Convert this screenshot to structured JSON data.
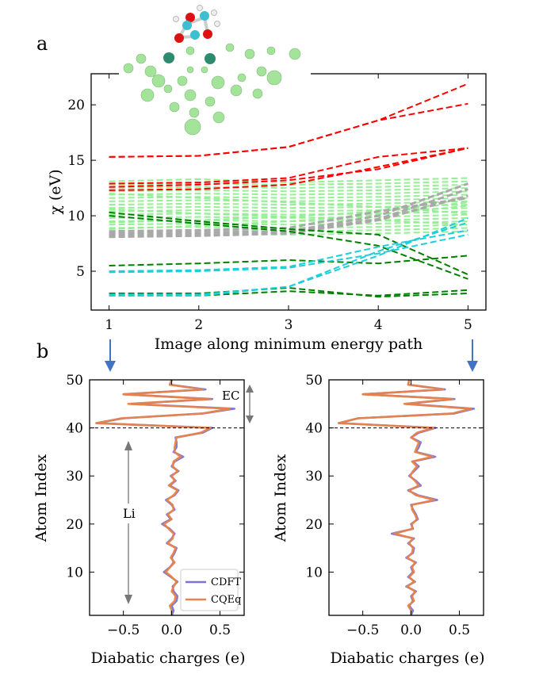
{
  "chart_data": [
    {
      "panel_label": "a",
      "type": "line",
      "xlabel": "Image along minimum energy path",
      "ylabel": "χ (eV)",
      "x": [
        1,
        2,
        3,
        4,
        5
      ],
      "xlim": [
        0.8,
        5.2
      ],
      "ylim": [
        1.5,
        22.8
      ],
      "xticks": [
        "1",
        "2",
        "3",
        "4",
        "5"
      ],
      "yticks": [
        "5",
        "10",
        "15",
        "20"
      ],
      "colors": {
        "O": "#ff0000",
        "C": "#008000",
        "H": "#1ccfdb",
        "Li_surface": "#a9a9a9",
        "Li": "#90ee90"
      },
      "series": [
        {
          "group": "O",
          "values": [
            15.3,
            15.4,
            16.2,
            18.6,
            20.1
          ]
        },
        {
          "group": "O",
          "values": [
            15.3,
            15.4,
            16.2,
            18.6,
            21.9
          ]
        },
        {
          "group": "O",
          "values": [
            12.9,
            13.0,
            13.4,
            15.3,
            16.1
          ]
        },
        {
          "group": "O",
          "values": [
            12.6,
            12.8,
            13.2,
            14.2,
            16.1
          ]
        },
        {
          "group": "O",
          "values": [
            12.3,
            12.4,
            12.8,
            14.4,
            16.1
          ]
        },
        {
          "group": "C",
          "values": [
            5.5,
            5.7,
            6.0,
            5.7,
            6.4
          ]
        },
        {
          "group": "C",
          "values": [
            10.3,
            9.5,
            8.8,
            8.3,
            4.7
          ]
        },
        {
          "group": "C",
          "values": [
            10.0,
            9.3,
            8.6,
            7.3,
            4.3
          ]
        },
        {
          "group": "C",
          "values": [
            3.0,
            3.0,
            3.5,
            2.7,
            3.0
          ]
        },
        {
          "group": "C",
          "values": [
            2.8,
            2.8,
            3.2,
            2.8,
            3.3
          ]
        },
        {
          "group": "H",
          "values": [
            4.9,
            5.0,
            5.3,
            6.6,
            8.3
          ]
        },
        {
          "group": "H",
          "values": [
            5.0,
            5.1,
            5.4,
            7.2,
            8.7
          ]
        },
        {
          "group": "H",
          "values": [
            2.9,
            2.9,
            3.6,
            6.4,
            9.8
          ]
        },
        {
          "group": "H",
          "values": [
            2.8,
            2.8,
            3.6,
            6.8,
            9.4
          ]
        },
        {
          "group": "Li_surface",
          "values": [
            8.4,
            8.5,
            8.6,
            10.0,
            12.9
          ]
        },
        {
          "group": "Li_surface",
          "values": [
            8.2,
            8.3,
            8.5,
            9.7,
            12.4
          ]
        },
        {
          "group": "Li_surface",
          "values": [
            8.1,
            8.2,
            8.4,
            9.6,
            11.8
          ]
        },
        {
          "group": "Li_surface",
          "values": [
            8.6,
            8.7,
            8.9,
            10.4,
            11.6
          ]
        },
        {
          "group": "Li",
          "values": [
            13.1,
            13.3,
            13.0,
            13.2,
            13.4
          ]
        },
        {
          "group": "Li",
          "values": [
            12.8,
            12.9,
            12.8,
            12.9,
            13.1
          ]
        },
        {
          "group": "Li",
          "values": [
            12.5,
            12.6,
            12.5,
            12.6,
            12.8
          ]
        },
        {
          "group": "Li",
          "values": [
            12.2,
            12.3,
            12.2,
            12.3,
            12.5
          ]
        },
        {
          "group": "Li",
          "values": [
            11.9,
            12.0,
            11.9,
            12.0,
            12.2
          ]
        },
        {
          "group": "Li",
          "values": [
            11.6,
            11.7,
            11.6,
            11.7,
            11.9
          ]
        },
        {
          "group": "Li",
          "values": [
            11.3,
            11.4,
            11.3,
            11.4,
            11.6
          ]
        },
        {
          "group": "Li",
          "values": [
            11.0,
            11.1,
            11.0,
            11.1,
            11.3
          ]
        },
        {
          "group": "Li",
          "values": [
            10.7,
            10.8,
            10.7,
            10.8,
            11.0
          ]
        },
        {
          "group": "Li",
          "values": [
            10.4,
            10.5,
            10.4,
            10.5,
            10.7
          ]
        },
        {
          "group": "Li",
          "values": [
            10.1,
            10.2,
            10.1,
            10.2,
            10.4
          ]
        },
        {
          "group": "Li",
          "values": [
            9.8,
            9.9,
            9.8,
            9.9,
            10.1
          ]
        },
        {
          "group": "Li",
          "values": [
            9.5,
            9.6,
            9.5,
            9.6,
            9.8
          ]
        },
        {
          "group": "Li",
          "values": [
            9.2,
            9.3,
            9.2,
            9.3,
            9.5
          ]
        },
        {
          "group": "Li",
          "values": [
            8.9,
            9.0,
            8.9,
            9.0,
            9.2
          ]
        },
        {
          "group": "Li",
          "values": [
            8.6,
            8.7,
            8.6,
            8.7,
            8.9
          ]
        },
        {
          "group": "Li",
          "values": [
            8.3,
            8.4,
            8.3,
            8.4,
            8.6
          ]
        },
        {
          "group": "Li",
          "values": [
            12.0,
            11.6,
            11.2,
            10.8,
            10.2
          ]
        },
        {
          "group": "Li",
          "values": [
            10.6,
            10.2,
            9.9,
            9.6,
            9.2
          ]
        },
        {
          "group": "Li",
          "values": [
            9.4,
            9.6,
            9.9,
            10.4,
            11.2
          ]
        },
        {
          "group": "Li",
          "values": [
            8.8,
            9.1,
            9.5,
            10.1,
            10.9
          ]
        }
      ]
    },
    {
      "panel_label": "b",
      "type": "line",
      "xlabel": "Diabatic charges (e)",
      "ylabel": "Atom Index",
      "xlim": [
        -0.85,
        0.75
      ],
      "ylim": [
        1,
        50
      ],
      "xticks": [
        "−0.5",
        "0.0",
        "0.5"
      ],
      "yticks": [
        "10",
        "20",
        "30",
        "40",
        "50"
      ],
      "divider_at": 40,
      "annotations": [
        "EC",
        "Li"
      ],
      "legend": [
        "CDFT",
        "CQEq"
      ],
      "series_colors": {
        "CDFT": "#7d74d1",
        "CQEq": "#e8834a"
      },
      "y": [
        1,
        2,
        3,
        4,
        5,
        6,
        7,
        8,
        9,
        10,
        11,
        12,
        13,
        14,
        15,
        16,
        17,
        18,
        19,
        20,
        21,
        22,
        23,
        24,
        25,
        26,
        27,
        28,
        29,
        30,
        31,
        32,
        33,
        34,
        35,
        36,
        37,
        38,
        39,
        40,
        41,
        42,
        43,
        44,
        45,
        46,
        47,
        48,
        49,
        50
      ],
      "series": [
        {
          "name": "CDFT",
          "values": [
            0.0,
            0.02,
            0.0,
            0.05,
            0.06,
            0.02,
            0.01,
            0.06,
            -0.01,
            -0.08,
            -0.02,
            0.02,
            0.0,
            0.03,
            0.05,
            -0.05,
            0.0,
            0.03,
            -0.02,
            -0.1,
            -0.01,
            -0.05,
            0.03,
            0.0,
            -0.06,
            0.03,
            0.07,
            -0.02,
            0.04,
            -0.01,
            0.07,
            0.0,
            0.03,
            0.12,
            0.02,
            0.05,
            0.05,
            0.04,
            0.32,
            0.42,
            -0.78,
            -0.5,
            0.33,
            0.65,
            -0.42,
            0.42,
            -0.5,
            0.35,
            -0.02,
            0.0
          ]
        },
        {
          "name": "CQEq",
          "values": [
            0.0,
            0.0,
            -0.02,
            0.03,
            0.04,
            0.0,
            0.02,
            0.05,
            0.0,
            -0.06,
            -0.02,
            0.03,
            -0.01,
            0.02,
            0.04,
            -0.04,
            0.01,
            0.02,
            -0.03,
            -0.08,
            0.0,
            -0.04,
            0.02,
            0.01,
            -0.05,
            0.02,
            0.06,
            -0.03,
            0.03,
            0.0,
            0.06,
            0.01,
            0.02,
            0.09,
            0.03,
            0.03,
            0.04,
            0.05,
            0.3,
            0.4,
            -0.78,
            -0.52,
            0.32,
            0.6,
            -0.45,
            0.4,
            -0.5,
            0.32,
            -0.02,
            0.0
          ]
        }
      ],
      "subpanel": "left"
    },
    {
      "panel_label": "",
      "type": "line",
      "xlabel": "Diabatic charges (e)",
      "ylabel": "Atom Index",
      "xlim": [
        -0.85,
        0.75
      ],
      "ylim": [
        1,
        50
      ],
      "xticks": [
        "−0.5",
        "0.0",
        "0.5"
      ],
      "yticks": [
        "10",
        "20",
        "30",
        "40",
        "50"
      ],
      "divider_at": 40,
      "y": [
        1,
        2,
        3,
        4,
        5,
        6,
        7,
        8,
        9,
        10,
        11,
        12,
        13,
        14,
        15,
        16,
        17,
        18,
        19,
        20,
        21,
        22,
        23,
        24,
        25,
        26,
        27,
        28,
        29,
        30,
        31,
        32,
        33,
        34,
        35,
        36,
        37,
        38,
        39,
        40,
        41,
        42,
        43,
        44,
        45,
        46,
        47,
        48,
        49,
        50
      ],
      "series": [
        {
          "name": "CDFT",
          "values": [
            0.0,
            0.02,
            -0.02,
            0.02,
            0.0,
            0.05,
            -0.05,
            0.04,
            -0.03,
            0.02,
            0.0,
            0.05,
            -0.05,
            0.02,
            0.03,
            -0.03,
            0.03,
            -0.2,
            0.02,
            0.0,
            0.07,
            0.05,
            0.02,
            0.0,
            0.27,
            0.07,
            -0.03,
            0.1,
            0.05,
            -0.02,
            0.03,
            0.08,
            0.02,
            0.25,
            0.05,
            0.08,
            0.1,
            0.0,
            0.08,
            0.25,
            -0.75,
            -0.55,
            0.45,
            0.65,
            -0.05,
            0.45,
            -0.5,
            0.35,
            -0.03,
            -0.02
          ]
        },
        {
          "name": "CQEq",
          "values": [
            0.0,
            0.0,
            -0.03,
            0.03,
            0.01,
            0.04,
            -0.04,
            0.03,
            -0.02,
            0.03,
            0.01,
            0.04,
            -0.04,
            0.01,
            0.02,
            -0.02,
            0.02,
            -0.17,
            0.01,
            0.01,
            0.06,
            0.04,
            0.01,
            0.01,
            0.24,
            0.05,
            -0.02,
            0.08,
            0.04,
            -0.01,
            0.02,
            0.06,
            0.01,
            0.22,
            0.04,
            0.06,
            0.08,
            0.0,
            0.06,
            0.23,
            -0.75,
            -0.55,
            0.43,
            0.62,
            -0.07,
            0.43,
            -0.5,
            0.33,
            -0.03,
            -0.02
          ]
        }
      ],
      "subpanel": "right"
    }
  ]
}
